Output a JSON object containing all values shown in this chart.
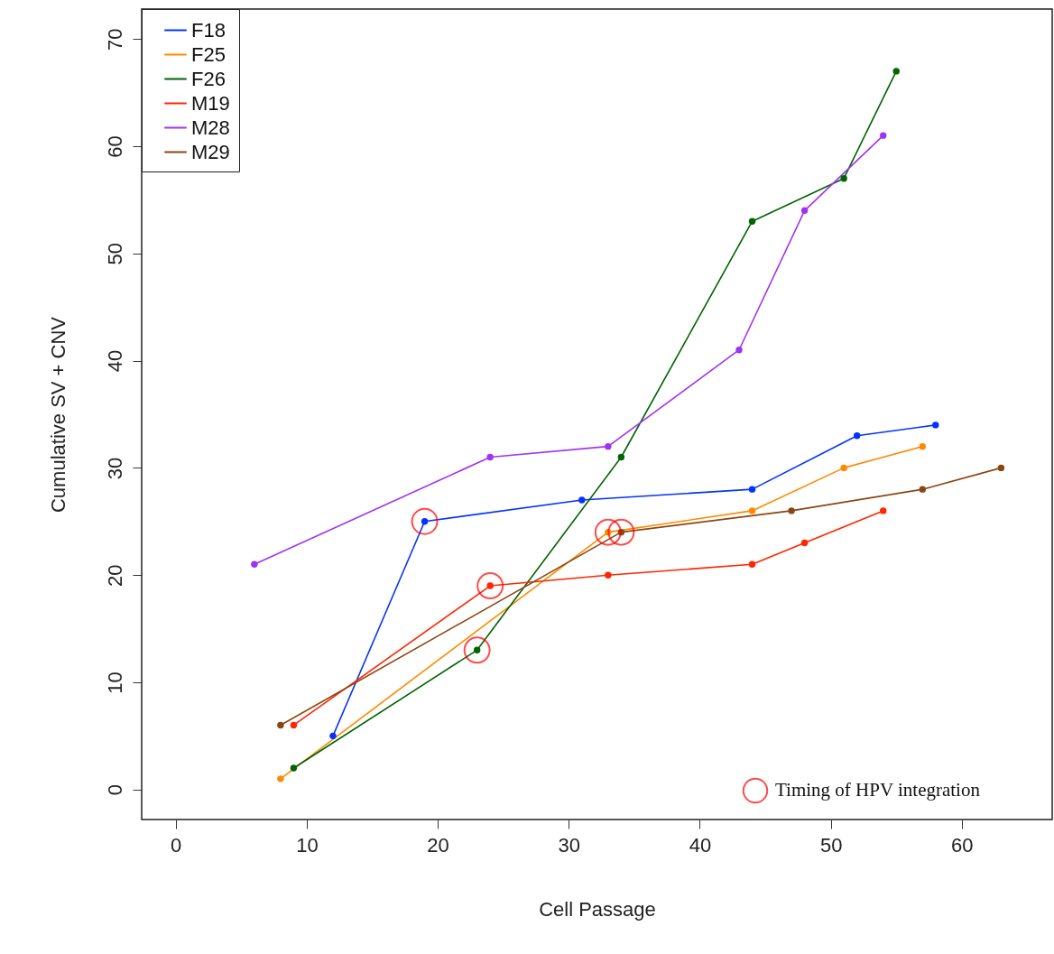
{
  "chart_data": {
    "type": "line",
    "xlabel": "Cell Passage",
    "ylabel": "Cumulative SV + CNV",
    "xlim": [
      -2.6,
      66.9
    ],
    "ylim": [
      -2.8,
      72.8
    ],
    "xticks": [
      0,
      10,
      20,
      30,
      40,
      50,
      60
    ],
    "yticks": [
      0,
      10,
      20,
      30,
      40,
      50,
      60,
      70
    ],
    "grid": false,
    "legend": "top left",
    "marker": "circle",
    "line_style": "solid",
    "series": [
      {
        "name": "F18",
        "color": "#0433ff",
        "x": [
          12,
          19,
          31,
          44,
          52,
          58
        ],
        "values": [
          5,
          25,
          27,
          28,
          33,
          34
        ]
      },
      {
        "name": "F25",
        "color": "#ff8a00",
        "x": [
          8,
          33,
          44,
          51,
          57
        ],
        "values": [
          1,
          24,
          26,
          30,
          32
        ]
      },
      {
        "name": "F26",
        "color": "#006400",
        "x": [
          9,
          23,
          34,
          44,
          51,
          55
        ],
        "values": [
          2,
          13,
          31,
          53,
          57,
          67
        ]
      },
      {
        "name": "M19",
        "color": "#ff2600",
        "x": [
          9,
          24,
          33,
          44,
          48,
          54
        ],
        "values": [
          6,
          19,
          20,
          21,
          23,
          26
        ]
      },
      {
        "name": "M28",
        "color": "#a033f0",
        "x": [
          6,
          24,
          33,
          43,
          48,
          54
        ],
        "values": [
          21,
          31,
          32,
          41,
          54,
          61
        ]
      },
      {
        "name": "M29",
        "color": "#8b4513",
        "x": [
          8,
          34,
          47,
          57,
          63
        ],
        "values": [
          6,
          24,
          26,
          28,
          30
        ]
      },
      {
        "name": "Timing of HPV integration",
        "type": "scatter",
        "marker": "circle",
        "color": "#ff0000",
        "x": [
          19,
          23,
          24,
          33,
          34
        ],
        "values": [
          25,
          13,
          19,
          24,
          24
        ]
      }
    ]
  }
}
